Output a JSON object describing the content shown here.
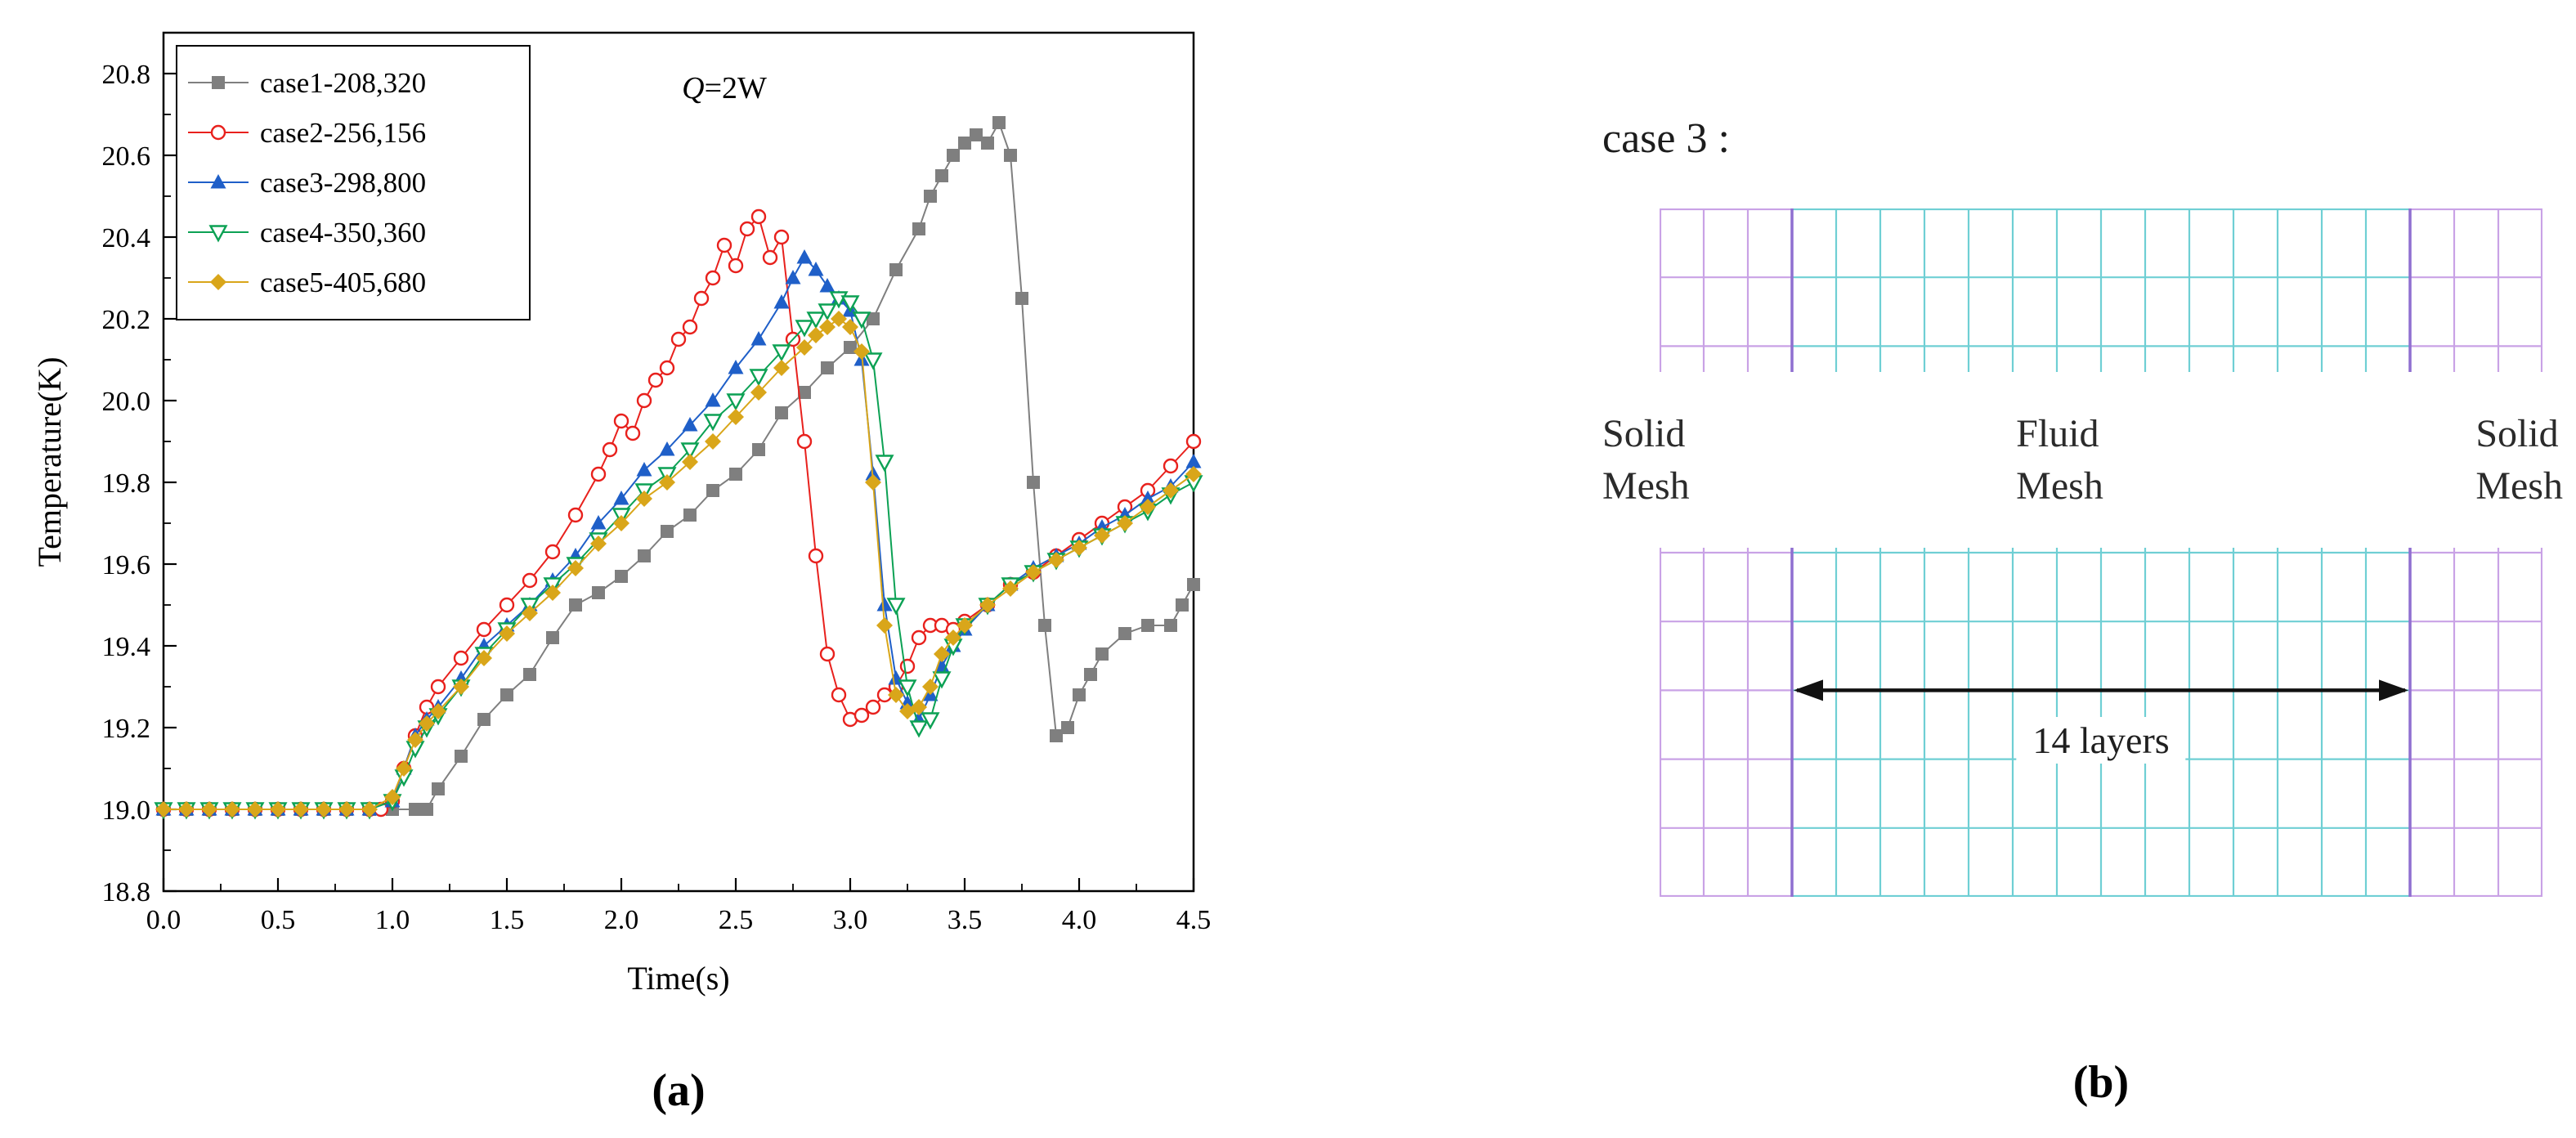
{
  "figure": {
    "caption_a": "(a)",
    "caption_b": "(b)"
  },
  "chart_data": {
    "type": "line",
    "title": "",
    "annotation": {
      "italic": "Q",
      "rest": "=2W"
    },
    "xlabel": "Time(s)",
    "ylabel": "Temperature(K)",
    "xlim": [
      0.0,
      4.5
    ],
    "ylim": [
      18.8,
      20.9
    ],
    "grid": false,
    "legend_position": "top-left",
    "xticks": [
      "0.0",
      "0.5",
      "1.0",
      "1.5",
      "2.0",
      "2.5",
      "3.0",
      "3.5",
      "4.0",
      "4.5"
    ],
    "yticks": [
      "18.8",
      "19.0",
      "19.2",
      "19.4",
      "19.6",
      "19.8",
      "20.0",
      "20.2",
      "20.4",
      "20.6",
      "20.8"
    ],
    "series": [
      {
        "name": "case1-208,320",
        "marker": "square-filled",
        "color": "#7f7f7f",
        "x": [
          0.0,
          0.1,
          0.2,
          0.3,
          0.4,
          0.5,
          0.6,
          0.7,
          0.8,
          0.9,
          1.0,
          1.1,
          1.15,
          1.2,
          1.3,
          1.4,
          1.5,
          1.6,
          1.7,
          1.8,
          1.9,
          2.0,
          2.1,
          2.2,
          2.3,
          2.4,
          2.5,
          2.6,
          2.7,
          2.8,
          2.9,
          3.0,
          3.1,
          3.2,
          3.3,
          3.35,
          3.4,
          3.45,
          3.5,
          3.55,
          3.6,
          3.65,
          3.7,
          3.75,
          3.8,
          3.85,
          3.9,
          3.95,
          4.0,
          4.05,
          4.1,
          4.2,
          4.3,
          4.4,
          4.45,
          4.5
        ],
        "y": [
          19.0,
          19.0,
          19.0,
          19.0,
          19.0,
          19.0,
          19.0,
          19.0,
          19.0,
          19.0,
          19.0,
          19.0,
          19.0,
          19.05,
          19.13,
          19.22,
          19.28,
          19.33,
          19.42,
          19.5,
          19.53,
          19.57,
          19.62,
          19.68,
          19.72,
          19.78,
          19.82,
          19.88,
          19.97,
          20.02,
          20.08,
          20.13,
          20.2,
          20.32,
          20.42,
          20.5,
          20.55,
          20.6,
          20.63,
          20.65,
          20.63,
          20.68,
          20.6,
          20.25,
          19.8,
          19.45,
          19.18,
          19.2,
          19.28,
          19.33,
          19.38,
          19.43,
          19.45,
          19.45,
          19.5,
          19.55
        ]
      },
      {
        "name": "case2-256,156",
        "marker": "circle-open",
        "color": "#e8211d",
        "x": [
          0.0,
          0.1,
          0.2,
          0.3,
          0.4,
          0.5,
          0.6,
          0.7,
          0.8,
          0.9,
          0.95,
          1.0,
          1.05,
          1.1,
          1.15,
          1.2,
          1.3,
          1.4,
          1.5,
          1.6,
          1.7,
          1.8,
          1.9,
          1.95,
          2.0,
          2.05,
          2.1,
          2.15,
          2.2,
          2.25,
          2.3,
          2.35,
          2.4,
          2.45,
          2.5,
          2.55,
          2.6,
          2.65,
          2.7,
          2.75,
          2.8,
          2.85,
          2.9,
          2.95,
          3.0,
          3.05,
          3.1,
          3.15,
          3.2,
          3.25,
          3.3,
          3.35,
          3.4,
          3.45,
          3.5,
          3.6,
          3.7,
          3.8,
          3.9,
          4.0,
          4.1,
          4.2,
          4.3,
          4.4,
          4.5
        ],
        "y": [
          19.0,
          19.0,
          19.0,
          19.0,
          19.0,
          19.0,
          19.0,
          19.0,
          19.0,
          19.0,
          19.0,
          19.02,
          19.1,
          19.18,
          19.25,
          19.3,
          19.37,
          19.44,
          19.5,
          19.56,
          19.63,
          19.72,
          19.82,
          19.88,
          19.95,
          19.92,
          20.0,
          20.05,
          20.08,
          20.15,
          20.18,
          20.25,
          20.3,
          20.38,
          20.33,
          20.42,
          20.45,
          20.35,
          20.4,
          20.15,
          19.9,
          19.62,
          19.38,
          19.28,
          19.22,
          19.23,
          19.25,
          19.28,
          19.3,
          19.35,
          19.42,
          19.45,
          19.45,
          19.44,
          19.46,
          19.5,
          19.55,
          19.58,
          19.62,
          19.66,
          19.7,
          19.74,
          19.78,
          19.84,
          19.9
        ]
      },
      {
        "name": "case3-298,800",
        "marker": "triangle-up-filled",
        "color": "#1f5fc8",
        "x": [
          0.0,
          0.1,
          0.2,
          0.3,
          0.4,
          0.5,
          0.6,
          0.7,
          0.8,
          0.9,
          1.0,
          1.05,
          1.1,
          1.15,
          1.2,
          1.3,
          1.4,
          1.5,
          1.6,
          1.7,
          1.8,
          1.9,
          2.0,
          2.1,
          2.2,
          2.3,
          2.4,
          2.5,
          2.6,
          2.7,
          2.75,
          2.8,
          2.85,
          2.9,
          2.95,
          3.0,
          3.05,
          3.1,
          3.15,
          3.2,
          3.25,
          3.3,
          3.35,
          3.4,
          3.45,
          3.5,
          3.6,
          3.7,
          3.8,
          3.9,
          4.0,
          4.1,
          4.2,
          4.3,
          4.4,
          4.5
        ],
        "y": [
          19.0,
          19.0,
          19.0,
          19.0,
          19.0,
          19.0,
          19.0,
          19.0,
          19.0,
          19.0,
          19.02,
          19.1,
          19.18,
          19.22,
          19.25,
          19.32,
          19.4,
          19.45,
          19.5,
          19.56,
          19.62,
          19.7,
          19.76,
          19.83,
          19.88,
          19.94,
          20.0,
          20.08,
          20.15,
          20.24,
          20.3,
          20.35,
          20.32,
          20.28,
          20.25,
          20.22,
          20.1,
          19.82,
          19.5,
          19.32,
          19.26,
          19.22,
          19.28,
          19.35,
          19.4,
          19.44,
          19.5,
          19.55,
          19.59,
          19.62,
          19.65,
          19.69,
          19.72,
          19.76,
          19.79,
          19.85
        ]
      },
      {
        "name": "case4-350,360",
        "marker": "triangle-down-open",
        "color": "#0ca154",
        "x": [
          0.0,
          0.1,
          0.2,
          0.3,
          0.4,
          0.5,
          0.6,
          0.7,
          0.8,
          0.9,
          1.0,
          1.05,
          1.1,
          1.15,
          1.2,
          1.3,
          1.4,
          1.5,
          1.6,
          1.7,
          1.8,
          1.9,
          2.0,
          2.1,
          2.2,
          2.3,
          2.4,
          2.5,
          2.6,
          2.7,
          2.8,
          2.85,
          2.9,
          2.95,
          3.0,
          3.05,
          3.1,
          3.15,
          3.2,
          3.25,
          3.3,
          3.35,
          3.4,
          3.45,
          3.5,
          3.6,
          3.7,
          3.8,
          3.9,
          4.0,
          4.1,
          4.2,
          4.3,
          4.4,
          4.5
        ],
        "y": [
          19.0,
          19.0,
          19.0,
          19.0,
          19.0,
          19.0,
          19.0,
          19.0,
          19.0,
          19.0,
          19.02,
          19.08,
          19.15,
          19.2,
          19.23,
          19.3,
          19.38,
          19.44,
          19.5,
          19.55,
          19.6,
          19.66,
          19.72,
          19.78,
          19.82,
          19.88,
          19.95,
          20.0,
          20.06,
          20.12,
          20.18,
          20.2,
          20.22,
          20.25,
          20.24,
          20.2,
          20.1,
          19.85,
          19.5,
          19.3,
          19.2,
          19.22,
          19.32,
          19.4,
          19.45,
          19.5,
          19.55,
          19.58,
          19.61,
          19.64,
          19.67,
          19.7,
          19.73,
          19.77,
          19.8
        ]
      },
      {
        "name": "case5-405,680",
        "marker": "diamond-filled",
        "color": "#d9a61a",
        "x": [
          0.0,
          0.1,
          0.2,
          0.3,
          0.4,
          0.5,
          0.6,
          0.7,
          0.8,
          0.9,
          1.0,
          1.05,
          1.1,
          1.15,
          1.2,
          1.3,
          1.4,
          1.5,
          1.6,
          1.7,
          1.8,
          1.9,
          2.0,
          2.1,
          2.2,
          2.3,
          2.4,
          2.5,
          2.6,
          2.7,
          2.8,
          2.85,
          2.9,
          2.95,
          3.0,
          3.05,
          3.1,
          3.15,
          3.2,
          3.25,
          3.3,
          3.35,
          3.4,
          3.45,
          3.5,
          3.6,
          3.7,
          3.8,
          3.9,
          4.0,
          4.1,
          4.2,
          4.3,
          4.4,
          4.5
        ],
        "y": [
          19.0,
          19.0,
          19.0,
          19.0,
          19.0,
          19.0,
          19.0,
          19.0,
          19.0,
          19.0,
          19.03,
          19.1,
          19.17,
          19.21,
          19.24,
          19.3,
          19.37,
          19.43,
          19.48,
          19.53,
          19.59,
          19.65,
          19.7,
          19.76,
          19.8,
          19.85,
          19.9,
          19.96,
          20.02,
          20.08,
          20.13,
          20.16,
          20.18,
          20.2,
          20.18,
          20.12,
          19.8,
          19.45,
          19.28,
          19.24,
          19.25,
          19.3,
          19.38,
          19.42,
          19.45,
          19.5,
          19.54,
          19.58,
          19.61,
          19.64,
          19.67,
          19.7,
          19.74,
          19.78,
          19.82
        ]
      }
    ]
  },
  "mesh_diagram": {
    "heading": "case 3 :",
    "left_label": [
      "Solid",
      "Mesh"
    ],
    "center_label": [
      "Fluid",
      "Mesh"
    ],
    "right_label": [
      "Solid",
      "Mesh"
    ],
    "arrow_label": "14 layers",
    "layout": {
      "solid_cols": 3,
      "fluid_cols": 14,
      "rows": 10
    },
    "colors": {
      "solid": "#c9a2e6",
      "fluid": "#6fcfd4",
      "boundary": "#8f6fd0",
      "arrow": "#111111"
    }
  }
}
